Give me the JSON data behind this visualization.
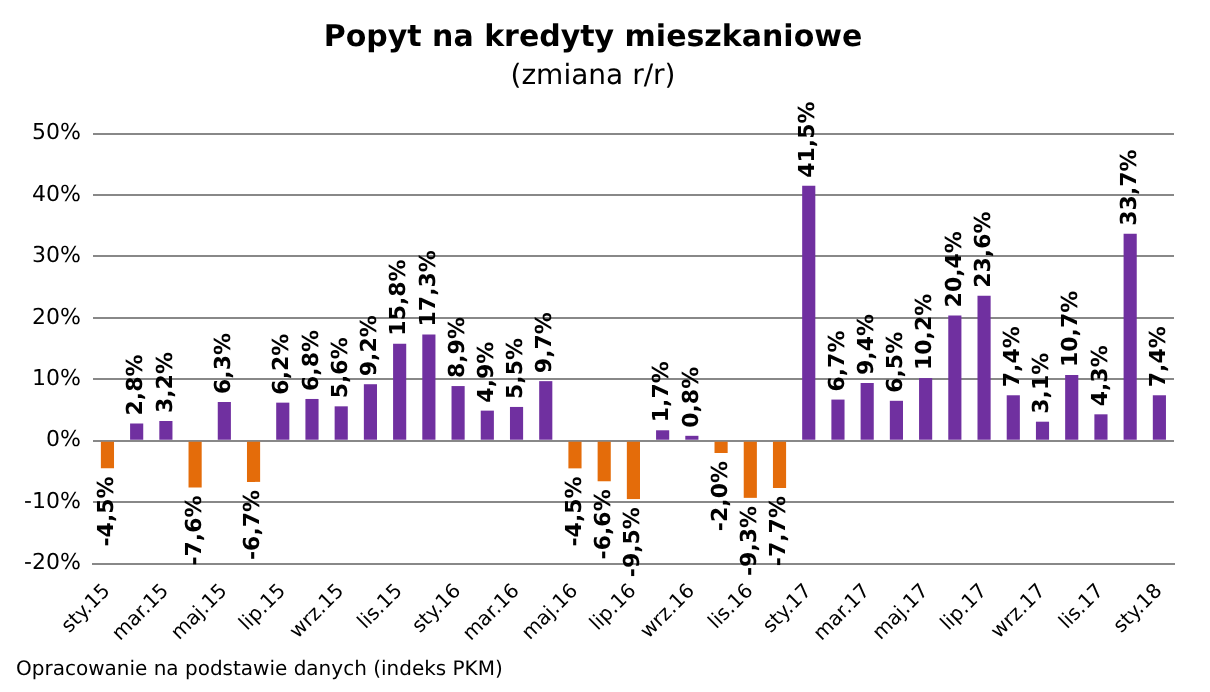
{
  "chart_data": {
    "type": "bar",
    "title": "Popyt na kredyty mieszkaniowe",
    "subtitle": "(zmiana r/r)",
    "categories": [
      "sty.15",
      null,
      "mar.15",
      null,
      "maj.15",
      null,
      "lip.15",
      null,
      "wrz.15",
      null,
      "lis.15",
      null,
      "sty.16",
      null,
      "mar.16",
      null,
      "maj.16",
      null,
      "lip.16",
      null,
      "wrz.16",
      null,
      "lis.16",
      null,
      "sty.17",
      null,
      "mar.17",
      null,
      "maj.17",
      null,
      "lip.17",
      null,
      "wrz.17",
      null,
      "lis.17",
      null,
      "sty.18"
    ],
    "values": [
      -4.5,
      2.8,
      3.2,
      -7.6,
      6.3,
      -6.7,
      6.2,
      6.8,
      5.6,
      9.2,
      15.8,
      17.3,
      8.9,
      4.9,
      5.5,
      9.7,
      -4.5,
      -6.6,
      -9.5,
      1.7,
      0.8,
      -2.0,
      -9.3,
      -7.7,
      41.5,
      6.7,
      9.4,
      6.5,
      10.2,
      20.4,
      23.6,
      7.4,
      3.1,
      10.7,
      4.3,
      33.7,
      7.4
    ],
    "value_labels": [
      "-4,5%",
      "2,8%",
      "3,2%",
      "-7,6%",
      "6,3%",
      "-6,7%",
      "6,2%",
      "6,8%",
      "5,6%",
      "9,2%",
      "15,8%",
      "17,3%",
      "8,9%",
      "4,9%",
      "5,5%",
      "9,7%",
      "-4,5%",
      "-6,6%",
      "-9,5%",
      "1,7%",
      "0,8%",
      "-2,0%",
      "-9,3%",
      "-7,7%",
      "41,5%",
      "6,7%",
      "9,4%",
      "6,5%",
      "10,2%",
      "20,4%",
      "23,6%",
      "7,4%",
      "3,1%",
      "10,7%",
      "4,3%",
      "33,7%",
      "7,4%"
    ],
    "colors": [
      "#e46c0a",
      "#7030a0",
      "#7030a0",
      "#e46c0a",
      "#7030a0",
      "#e46c0a",
      "#7030a0",
      "#7030a0",
      "#7030a0",
      "#7030a0",
      "#7030a0",
      "#7030a0",
      "#7030a0",
      "#7030a0",
      "#7030a0",
      "#7030a0",
      "#e46c0a",
      "#e46c0a",
      "#e46c0a",
      "#7030a0",
      "#7030a0",
      "#e46c0a",
      "#e46c0a",
      "#e46c0a",
      "#7030a0",
      "#7030a0",
      "#7030a0",
      "#7030a0",
      "#7030a0",
      "#7030a0",
      "#7030a0",
      "#7030a0",
      "#7030a0",
      "#7030a0",
      "#7030a0",
      "#7030a0",
      "#7030a0"
    ],
    "ylim": [
      -20,
      50
    ],
    "yticks": [
      {
        "value": -20,
        "label": "-20%"
      },
      {
        "value": -10,
        "label": "-10%"
      },
      {
        "value": 0,
        "label": "0%"
      },
      {
        "value": 10,
        "label": "10%"
      },
      {
        "value": 20,
        "label": "20%"
      },
      {
        "value": 30,
        "label": "30%"
      },
      {
        "value": 40,
        "label": "40%"
      },
      {
        "value": 50,
        "label": "50%"
      }
    ],
    "grid": "y",
    "legend": false,
    "annotations": [
      "Opracowanie na podstawie danych (indeks PKM)"
    ]
  }
}
